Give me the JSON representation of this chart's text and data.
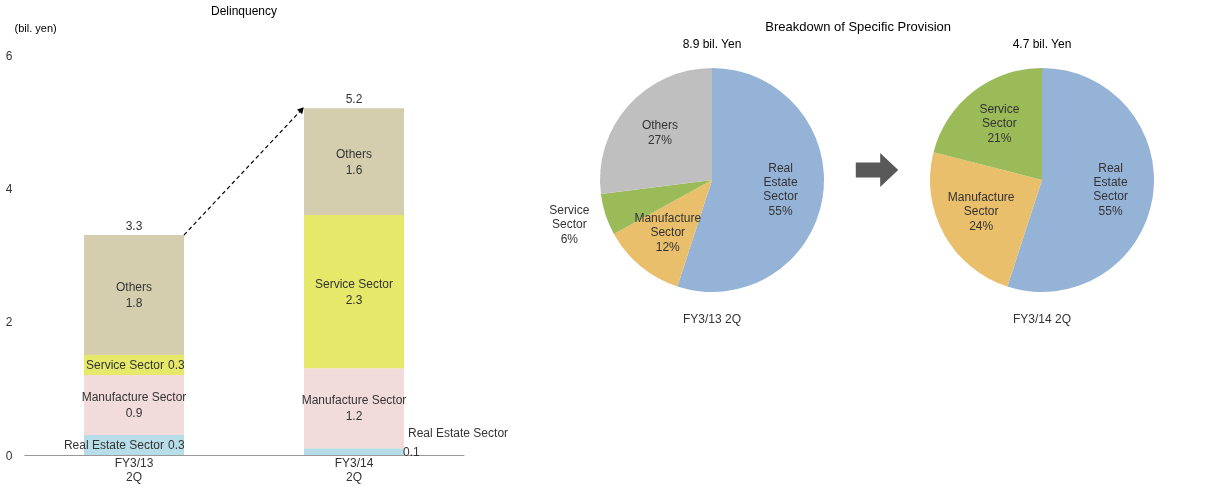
{
  "chart_data": [
    {
      "type": "bar",
      "title": "Delinquency",
      "ylabel": "(bil. yen)",
      "categories": [
        "FY3/13 2Q",
        "FY3/14 2Q"
      ],
      "stacked": true,
      "ylim": [
        0,
        6
      ],
      "yticks": [
        0,
        2,
        4,
        6
      ],
      "grid": false,
      "legend": false,
      "data_labels": true,
      "totals": [
        "3.3",
        "5.2"
      ],
      "series": [
        {
          "name": "Real Estate Sector",
          "color": "#b7dde8",
          "values": [
            0.3,
            0.1
          ]
        },
        {
          "name": "Manufacture Sector",
          "color": "#f2dcdb",
          "values": [
            0.9,
            1.2
          ]
        },
        {
          "name": "Service Sector",
          "color": "#e6e86a",
          "values": [
            0.3,
            2.3
          ]
        },
        {
          "name": "Others",
          "color": "#d4ceae",
          "values": [
            1.8,
            1.6
          ]
        }
      ]
    },
    {
      "type": "pie",
      "title": "Breakdown of Specific Provision",
      "subtitle": "8.9 bil. Yen",
      "xlabel": "FY3/13 2Q",
      "legend": false,
      "categories": [
        "Real Estate Sector",
        "Manufacture Sector",
        "Service Sector",
        "Others"
      ],
      "values": [
        55,
        12,
        6,
        27
      ],
      "value_labels": [
        "55%",
        "12%",
        "6%",
        "27%"
      ],
      "colors": [
        "#95b3d7",
        "#e9bf6b",
        "#9bbb59",
        "#bfbfbf"
      ]
    },
    {
      "type": "pie",
      "subtitle": "4.7 bil. Yen",
      "xlabel": "FY3/14 2Q",
      "legend": false,
      "categories": [
        "Real Estate Sector",
        "Manufacture Sector",
        "Service Sector"
      ],
      "values": [
        55,
        24,
        21
      ],
      "value_labels": [
        "55%",
        "24%",
        "21%"
      ],
      "colors": [
        "#95b3d7",
        "#e9bf6b",
        "#9bbb59"
      ]
    }
  ]
}
